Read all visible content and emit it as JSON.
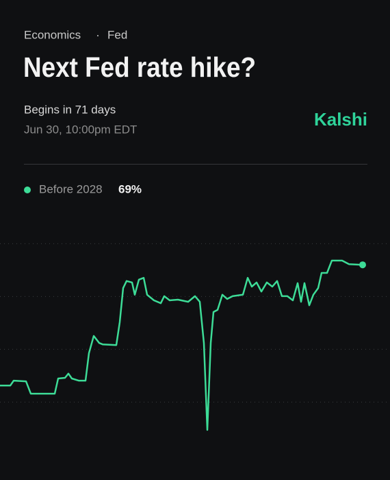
{
  "header": {
    "breadcrumb": [
      "Economics",
      "Fed"
    ],
    "separator": "·",
    "title": "Next Fed rate hike?",
    "status": "Begins in 71 days",
    "date": "Jun 30, 10:00pm EDT",
    "brand": "Kalshi"
  },
  "chart_data": {
    "type": "line",
    "x": [
      0,
      15,
      20,
      38,
      45,
      80,
      85,
      95,
      100,
      105,
      115,
      125,
      130,
      137,
      145,
      150,
      170,
      175,
      180,
      185,
      193,
      197,
      203,
      210,
      215,
      225,
      235,
      240,
      248,
      260,
      275,
      285,
      292,
      298,
      303,
      308,
      312,
      318,
      325,
      332,
      340,
      355,
      362,
      368,
      375,
      382,
      390,
      398,
      405,
      412,
      420,
      428,
      435,
      440,
      445,
      452,
      458,
      465,
      470,
      478,
      485,
      500,
      510,
      530
    ],
    "series": [
      {
        "name": "Before 2028",
        "color": "#3ddc97",
        "values": [
          34.7,
          34.7,
          36.1,
          35.9,
          32.4,
          32.4,
          36.7,
          36.9,
          38.1,
          36.7,
          36.1,
          36.1,
          43.9,
          48.8,
          46.8,
          46.4,
          46.2,
          52.7,
          62.4,
          64.4,
          64.0,
          60.5,
          64.8,
          65.3,
          60.5,
          58.9,
          58.1,
          60.1,
          58.9,
          59.1,
          58.5,
          60.1,
          58.5,
          46.8,
          22.1,
          46.8,
          55.6,
          56.2,
          60.5,
          59.3,
          60.1,
          60.5,
          65.3,
          62.8,
          64.0,
          61.4,
          64.0,
          62.8,
          64.4,
          60.1,
          60.1,
          58.9,
          63.8,
          58.5,
          63.8,
          57.5,
          60.5,
          62.4,
          66.7,
          66.7,
          70.2,
          70.2,
          69.2,
          69
        ],
        "value_labels": [
          null,
          null,
          null,
          null,
          null,
          null,
          null,
          null,
          null,
          null,
          null,
          null,
          null,
          null,
          null,
          null,
          null,
          null,
          null,
          null,
          null,
          null,
          null,
          null,
          null,
          null,
          null,
          null,
          null,
          null,
          null,
          null,
          null,
          null,
          null,
          null,
          null,
          null,
          null,
          null,
          null,
          null,
          null,
          null,
          null,
          null,
          null,
          null,
          null,
          null,
          null,
          null,
          null,
          null,
          null,
          null,
          null,
          null,
          null,
          null,
          null,
          null,
          null,
          "69%"
        ]
      }
    ],
    "xlim": [
      0,
      530
    ],
    "ylim": [
      18,
      78
    ],
    "yticks": [
      30,
      45,
      60,
      75
    ],
    "grid": true
  }
}
